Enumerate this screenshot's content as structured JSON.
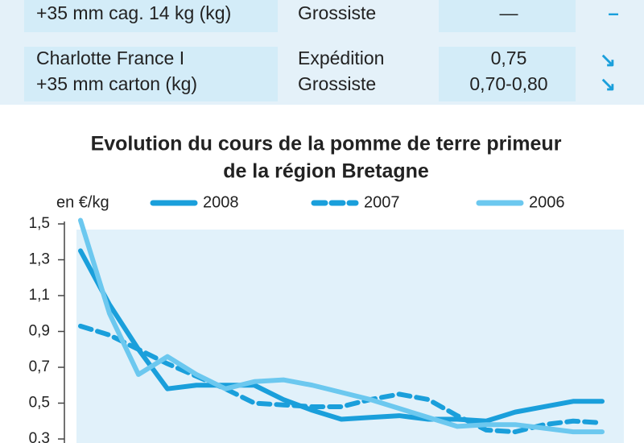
{
  "table": {
    "rows": [
      {
        "product": [
          "+35 mm cag. 14 kg (kg)"
        ],
        "market": [
          "Grossiste"
        ],
        "price": [
          "—"
        ],
        "trend": [
          "–"
        ]
      },
      {
        "product": [
          "Charlotte France I",
          "+35 mm carton (kg)"
        ],
        "market": [
          "Expédition",
          "Grossiste"
        ],
        "price": [
          "0,75",
          "0,70-0,80"
        ],
        "trend": [
          "↘",
          "↘"
        ]
      }
    ]
  },
  "chart_data": {
    "type": "line",
    "title": [
      "Evolution du cours de la pomme de terre primeur",
      "de la région Bretagne"
    ],
    "ylabel": "en €/kg",
    "categories": [
      null,
      null,
      null,
      null,
      null,
      null,
      null,
      null,
      null,
      null,
      null,
      null,
      null,
      null,
      null,
      null,
      null,
      null,
      null
    ],
    "series": [
      {
        "name": "2008",
        "color": "#1a9fdb",
        "dash": false,
        "values": [
          1.35,
          1.05,
          0.8,
          0.58,
          0.6,
          0.6,
          0.6,
          0.52,
          0.46,
          0.41,
          0.42,
          0.43,
          0.41,
          0.41,
          0.4,
          0.45,
          0.48,
          0.51,
          0.51
        ]
      },
      {
        "name": "2007",
        "color": "#1a9fdb",
        "dash": true,
        "values": [
          0.93,
          0.88,
          0.8,
          0.72,
          0.65,
          0.58,
          0.5,
          0.49,
          0.48,
          0.48,
          0.52,
          0.55,
          0.52,
          0.43,
          0.35,
          0.34,
          0.38,
          0.4,
          0.39
        ]
      },
      {
        "name": "2006",
        "color": "#6cc8ef",
        "dash": false,
        "values": [
          1.52,
          1.0,
          0.66,
          0.76,
          0.66,
          0.58,
          0.62,
          0.63,
          0.6,
          0.56,
          0.52,
          0.47,
          0.42,
          0.37,
          0.38,
          0.38,
          0.36,
          0.34,
          0.34
        ]
      }
    ],
    "ylim": [
      0.3,
      1.5
    ],
    "yticks": [
      {
        "value": 1.5,
        "label": "1,5"
      },
      {
        "value": 1.3,
        "label": "1,3"
      },
      {
        "value": 1.1,
        "label": "1,1"
      },
      {
        "value": 0.9,
        "label": "0,9"
      },
      {
        "value": 0.7,
        "label": "0,7"
      },
      {
        "value": 0.5,
        "label": "0,5"
      },
      {
        "value": 0.3,
        "label": "0,3"
      }
    ]
  }
}
